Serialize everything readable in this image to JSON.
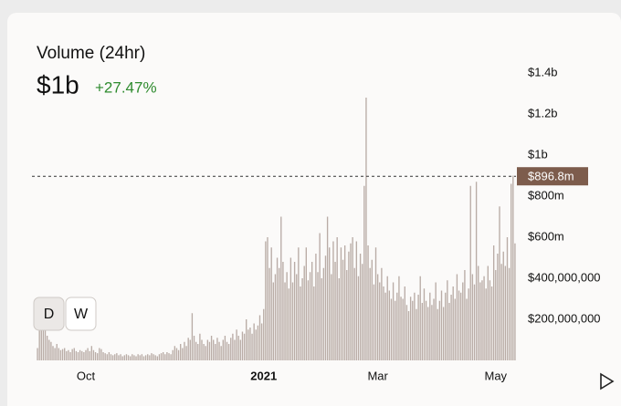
{
  "chart_data": {
    "type": "bar",
    "title": "Volume (24hr)",
    "header_value": "$1b",
    "change": "+27.47%",
    "change_color": "#2e8b2e",
    "color": "#b9aca6",
    "values": [
      60000000.0,
      150000000.0,
      170000000.0,
      160000000.0,
      150000000.0,
      120000000.0,
      100000000.0,
      90000000.0,
      70000000.0,
      60000000.0,
      80000000.0,
      60000000.0,
      50000000.0,
      55000000.0,
      60000000.0,
      45000000.0,
      50000000.0,
      40000000.0,
      55000000.0,
      60000000.0,
      45000000.0,
      40000000.0,
      50000000.0,
      45000000.0,
      40000000.0,
      50000000.0,
      60000000.0,
      45000000.0,
      70000000.0,
      50000000.0,
      40000000.0,
      35000000.0,
      60000000.0,
      55000000.0,
      40000000.0,
      35000000.0,
      30000000.0,
      40000000.0,
      30000000.0,
      25000000.0,
      30000000.0,
      35000000.0,
      25000000.0,
      30000000.0,
      20000000.0,
      25000000.0,
      30000000.0,
      25000000.0,
      20000000.0,
      30000000.0,
      25000000.0,
      20000000.0,
      30000000.0,
      25000000.0,
      30000000.0,
      20000000.0,
      25000000.0,
      30000000.0,
      25000000.0,
      35000000.0,
      30000000.0,
      25000000.0,
      20000000.0,
      30000000.0,
      35000000.0,
      40000000.0,
      30000000.0,
      40000000.0,
      35000000.0,
      30000000.0,
      50000000.0,
      70000000.0,
      60000000.0,
      50000000.0,
      80000000.0,
      60000000.0,
      90000000.0,
      70000000.0,
      110000000.0,
      100000000.0,
      230000000.0,
      120000000.0,
      90000000.0,
      80000000.0,
      130000000.0,
      100000000.0,
      80000000.0,
      70000000.0,
      100000000.0,
      90000000.0,
      120000000.0,
      100000000.0,
      80000000.0,
      110000000.0,
      90000000.0,
      70000000.0,
      100000000.0,
      120000000.0,
      90000000.0,
      80000000.0,
      110000000.0,
      130000000.0,
      100000000.0,
      150000000.0,
      120000000.0,
      100000000.0,
      140000000.0,
      130000000.0,
      200000000.0,
      150000000.0,
      160000000.0,
      130000000.0,
      180000000.0,
      150000000.0,
      170000000.0,
      220000000.0,
      180000000.0,
      250000000.0,
      580000000.0,
      600000000.0,
      450000000.0,
      550000000.0,
      380000000.0,
      420000000.0,
      500000000.0,
      450000000.0,
      700000000.0,
      480000000.0,
      380000000.0,
      430000000.0,
      350000000.0,
      500000000.0,
      380000000.0,
      480000000.0,
      420000000.0,
      550000000.0,
      360000000.0,
      400000000.0,
      460000000.0,
      550000000.0,
      390000000.0,
      430000000.0,
      480000000.0,
      360000000.0,
      520000000.0,
      430000000.0,
      620000000.0,
      400000000.0,
      450000000.0,
      510000000.0,
      700000000.0,
      550000000.0,
      420000000.0,
      580000000.0,
      480000000.0,
      600000000.0,
      400000000.0,
      550000000.0,
      490000000.0,
      560000000.0,
      440000000.0,
      530000000.0,
      570000000.0,
      600000000.0,
      450000000.0,
      580000000.0,
      410000000.0,
      520000000.0,
      470000000.0,
      850000000.0,
      1280000000.0,
      560000000.0,
      450000000.0,
      490000000.0,
      370000000.0,
      550000000.0,
      420000000.0,
      380000000.0,
      450000000.0,
      360000000.0,
      330000000.0,
      410000000.0,
      340000000.0,
      300000000.0,
      380000000.0,
      290000000.0,
      330000000.0,
      410000000.0,
      310000000.0,
      300000000.0,
      360000000.0,
      270000000.0,
      240000000.0,
      310000000.0,
      290000000.0,
      330000000.0,
      250000000.0,
      320000000.0,
      410000000.0,
      280000000.0,
      350000000.0,
      290000000.0,
      260000000.0,
      330000000.0,
      270000000.0,
      300000000.0,
      380000000.0,
      250000000.0,
      290000000.0,
      340000000.0,
      260000000.0,
      330000000.0,
      390000000.0,
      280000000.0,
      320000000.0,
      360000000.0,
      300000000.0,
      420000000.0,
      340000000.0,
      330000000.0,
      380000000.0,
      440000000.0,
      300000000.0,
      350000000.0,
      850000000.0,
      420000000.0,
      370000000.0,
      870000000.0,
      460000000.0,
      380000000.0,
      390000000.0,
      410000000.0,
      350000000.0,
      460000000.0,
      390000000.0,
      360000000.0,
      560000000.0,
      440000000.0,
      520000000.0,
      750000000.0,
      470000000.0,
      530000000.0,
      460000000.0,
      600000000.0,
      450000000.0,
      860000000.0,
      900000000.0,
      570000000.0
    ],
    "xlim": [
      -0.5,
      247.5
    ],
    "xticks": [
      {
        "value": 25,
        "label": "Oct"
      },
      {
        "value": 117,
        "label": "2021"
      },
      {
        "value": 176,
        "label": "Mar"
      },
      {
        "value": 237,
        "label": "May"
      }
    ],
    "ylim": [
      0,
      1500000000
    ],
    "yticks": [
      {
        "value": 200000000,
        "label": "$200,000,000"
      },
      {
        "value": 400000000,
        "label": "$400,000,000"
      },
      {
        "value": 600000000,
        "label": "$600m"
      },
      {
        "value": 800000000,
        "label": "$800m"
      },
      {
        "value": 1000000000,
        "label": "$1b"
      },
      {
        "value": 1200000000,
        "label": "$1.2b"
      },
      {
        "value": 1400000000,
        "label": "$1.4b"
      }
    ],
    "reference_line": {
      "value": 896800000,
      "label": "$896.8m",
      "color": "#7d5c4c"
    },
    "controls": [
      "D",
      "W"
    ]
  }
}
